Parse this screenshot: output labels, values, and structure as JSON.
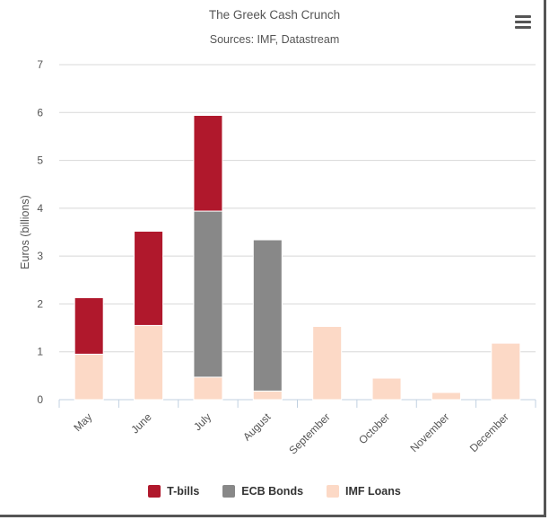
{
  "chart_data": {
    "type": "bar",
    "stacked": true,
    "title": "The Greek Cash Crunch",
    "subtitle": "Sources: IMF, Datastream",
    "ylabel": "Euros (billions)",
    "xlabel": "",
    "ylim": [
      0,
      7
    ],
    "yticks": [
      "0",
      "1",
      "2",
      "3",
      "4",
      "5",
      "6",
      "7"
    ],
    "grid": true,
    "legend_position": "bottom-center",
    "categories": [
      "May",
      "June",
      "July",
      "August",
      "September",
      "October",
      "November",
      "December"
    ],
    "series": [
      {
        "name": "IMF Loans",
        "color": "#fcd9c6",
        "values": [
          0.95,
          1.55,
          0.47,
          0.18,
          1.53,
          0.45,
          0.15,
          1.18
        ]
      },
      {
        "name": "ECB Bonds",
        "color": "#888888",
        "values": [
          0,
          0,
          3.47,
          3.16,
          0,
          0,
          0,
          0
        ]
      },
      {
        "name": "T-bills",
        "color": "#b0182c",
        "values": [
          1.18,
          1.97,
          2.0,
          0,
          0,
          0,
          0,
          0
        ]
      }
    ]
  },
  "legend": {
    "items": [
      {
        "label": "T-bills",
        "color": "#b0182c"
      },
      {
        "label": "ECB Bonds",
        "color": "#888888"
      },
      {
        "label": "IMF Loans",
        "color": "#fcd9c6"
      }
    ]
  },
  "toolbar": {
    "menu_icon": "hamburger-menu-icon"
  }
}
